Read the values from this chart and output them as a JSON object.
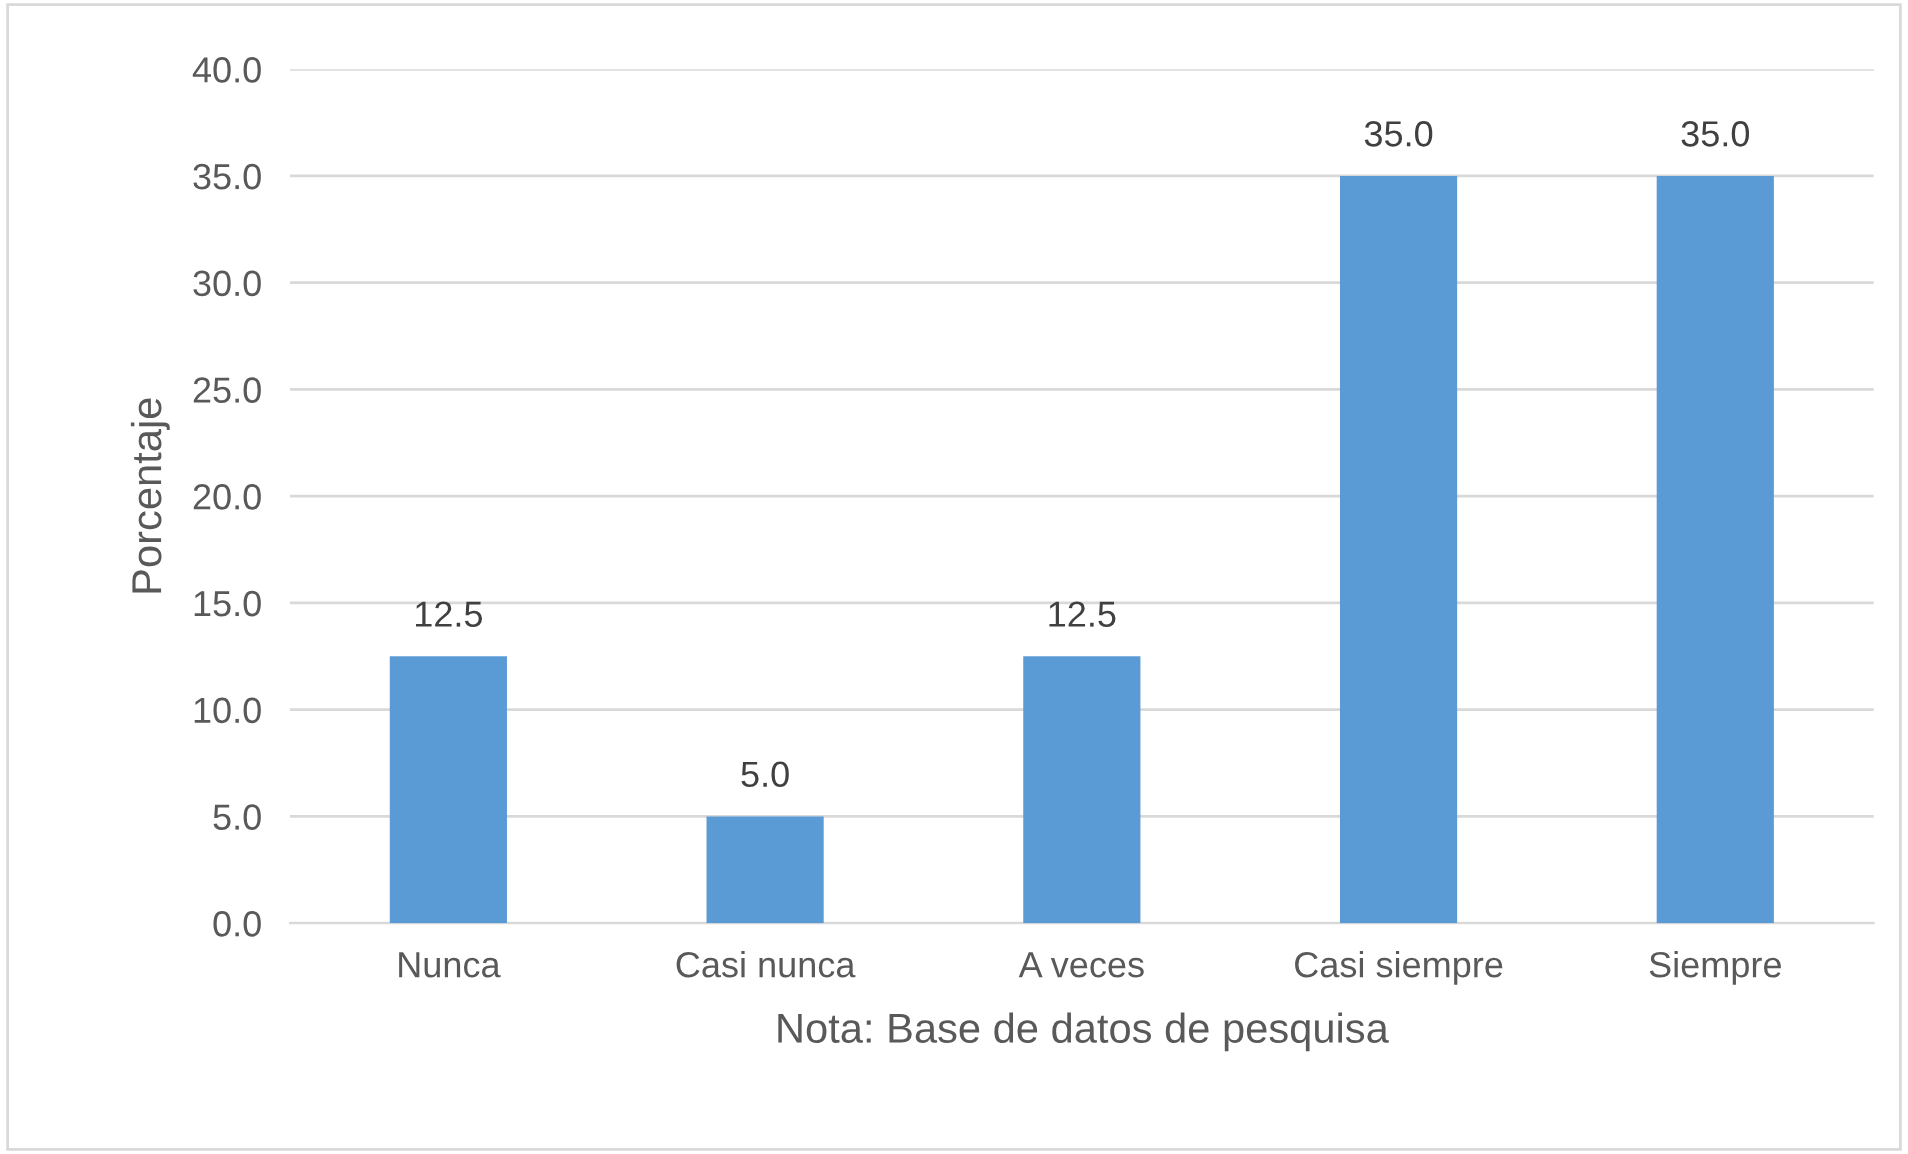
{
  "chart_data": {
    "type": "bar",
    "categories": [
      "Nunca",
      "Casi nunca",
      "A veces",
      "Casi siempre",
      "Siempre"
    ],
    "values": [
      12.5,
      5.0,
      12.5,
      35.0,
      35.0
    ],
    "value_labels": [
      "12.5",
      "5.0",
      "12.5",
      "35.0",
      "35.0"
    ],
    "color": "#5b9bd5",
    "ylabel": "Porcentaje",
    "xlabel": "Nota: Base de datos de pesquisa",
    "ylim": [
      0,
      40
    ],
    "yticks": [
      {
        "value": 0,
        "label": "0.0"
      },
      {
        "value": 5,
        "label": "5.0"
      },
      {
        "value": 10,
        "label": "10.0"
      },
      {
        "value": 15,
        "label": "15.0"
      },
      {
        "value": 20,
        "label": "20.0"
      },
      {
        "value": 25,
        "label": "25.0"
      },
      {
        "value": 30,
        "label": "30.0"
      },
      {
        "value": 35,
        "label": "35.0"
      },
      {
        "value": 40,
        "label": "40.0"
      }
    ],
    "grid": "y"
  }
}
